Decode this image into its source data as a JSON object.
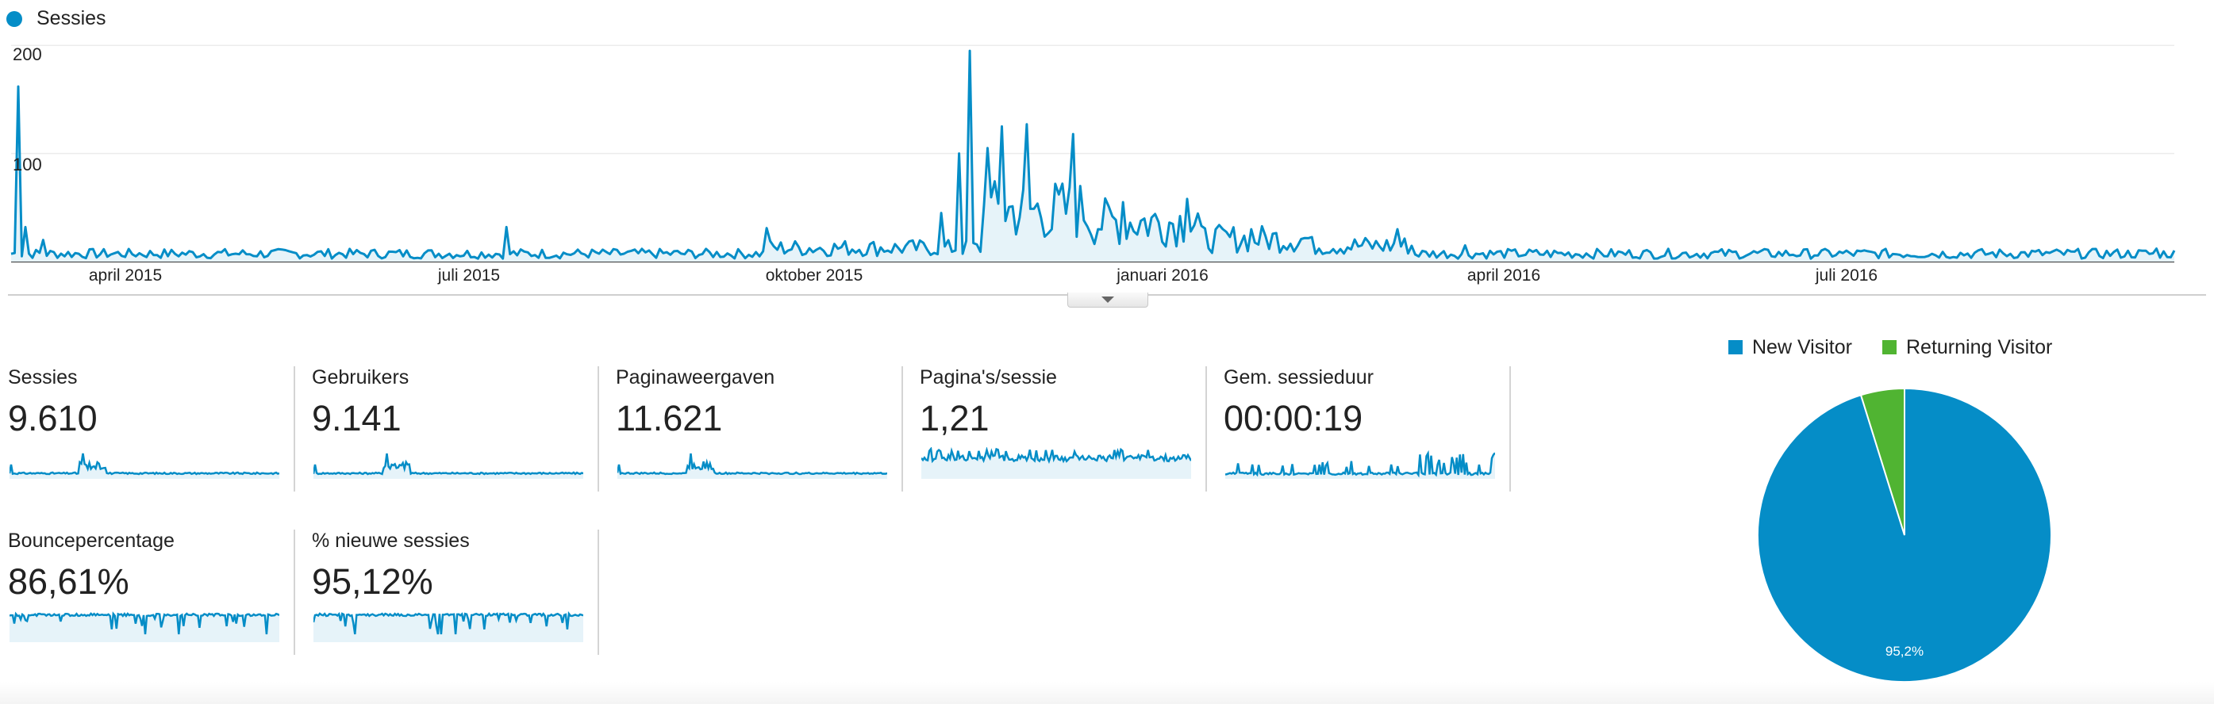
{
  "legend": {
    "series_name": "Sessies",
    "color": "#058dc7"
  },
  "y_ticks": [
    "200",
    "100"
  ],
  "x_ticks": [
    "april 2015",
    "juli 2015",
    "oktober 2015",
    "januari 2016",
    "april 2016",
    "juli 2016"
  ],
  "collapse_toggle": {
    "icon": "chevron-down-icon"
  },
  "metrics": [
    {
      "id": "sessies",
      "label": "Sessies",
      "value": "9.610"
    },
    {
      "id": "gebruikers",
      "label": "Gebruikers",
      "value": "9.141"
    },
    {
      "id": "paginaweergaven",
      "label": "Paginaweergaven",
      "value": "11.621"
    },
    {
      "id": "paginas-per-sessie",
      "label": "Pagina's/sessie",
      "value": "1,21"
    },
    {
      "id": "gem-sessieduur",
      "label": "Gem. sessieduur",
      "value": "00:00:19"
    },
    {
      "id": "bouncepercentage",
      "label": "Bouncepercentage",
      "value": "86,61%"
    },
    {
      "id": "nieuwe-sessies",
      "label": "% nieuwe sessies",
      "value": "95,12%"
    }
  ],
  "chart_data": [
    {
      "type": "area",
      "series": [
        {
          "name": "Sessies",
          "color": "#058dc7"
        }
      ],
      "x_range": [
        "2015-02-01",
        "2016-09-30"
      ],
      "ylim": [
        0,
        220
      ],
      "y_ticks": [
        100,
        200
      ],
      "x_tick_labels": [
        "april 2015",
        "juli 2015",
        "oktober 2015",
        "januari 2016",
        "april 2016",
        "juli 2016"
      ],
      "grid": true,
      "daily_pattern": {
        "baseline": 7,
        "points": [
          {
            "date": "2015-02-03",
            "value": 162
          },
          {
            "date": "2015-02-05",
            "value": 32
          },
          {
            "date": "2015-02-10",
            "value": 20
          },
          {
            "date": "2015-06-20",
            "value": 32
          },
          {
            "date": "2015-09-01",
            "value": 31
          },
          {
            "date": "2015-10-20",
            "value": 45
          },
          {
            "date": "2015-10-25",
            "value": 100
          },
          {
            "date": "2015-10-28",
            "value": 195
          },
          {
            "date": "2015-11-02",
            "value": 105
          },
          {
            "date": "2015-11-06",
            "value": 125
          },
          {
            "date": "2015-11-13",
            "value": 127
          },
          {
            "date": "2015-11-20",
            "value": 30
          },
          {
            "date": "2015-11-26",
            "value": 118
          },
          {
            "date": "2015-12-10",
            "value": 55
          },
          {
            "date": "2015-12-28",
            "value": 58
          },
          {
            "date": "2016-01-15",
            "value": 30
          },
          {
            "date": "2016-02-25",
            "value": 30
          },
          {
            "date": "2016-03-15",
            "value": 15
          },
          {
            "date": "2016-09-25",
            "value": 12
          }
        ]
      }
    },
    {
      "type": "pie",
      "slices": [
        {
          "label": "New Visitor",
          "value": 95.2,
          "color": "#058dc7",
          "data_label": "95,2%"
        },
        {
          "label": "Returning Visitor",
          "value": 4.8,
          "color": "#50b432"
        }
      ],
      "legend_position": "top"
    }
  ]
}
